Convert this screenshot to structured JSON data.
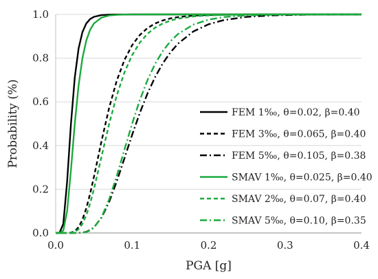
{
  "chart_data": {
    "type": "line",
    "title": "",
    "xlabel": "PGA [g]",
    "ylabel": "Probability (%)",
    "xlim": [
      0.0,
      0.4
    ],
    "ylim": [
      0.0,
      1.0
    ],
    "x_ticks": [
      "0.0",
      "0.1",
      "0.2",
      "0.3",
      "0.4"
    ],
    "y_ticks": [
      "0.0",
      "0.2",
      "0.4",
      "0.6",
      "0.8",
      "1.0"
    ],
    "grid": "horizontal",
    "legend_position": "right",
    "distribution": "lognormal",
    "x_samples": [
      0.0,
      0.005,
      0.01,
      0.015,
      0.02,
      0.025,
      0.03,
      0.035,
      0.04,
      0.045,
      0.05,
      0.06,
      0.07,
      0.08,
      0.09,
      0.1,
      0.11,
      0.12,
      0.13,
      0.14,
      0.15,
      0.16,
      0.18,
      0.2,
      0.22,
      0.25,
      0.28,
      0.3,
      0.33,
      0.36,
      0.4
    ],
    "series": [
      {
        "name": "FEM 1‰, θ=0.02, β=0.40",
        "theta": 0.02,
        "beta": 0.4,
        "color": "#000000",
        "dash": "solid"
      },
      {
        "name": "FEM 3‰, θ=0.065, β=0.40",
        "theta": 0.065,
        "beta": 0.4,
        "color": "#000000",
        "dash": "dash"
      },
      {
        "name": "FEM 5‰, θ=0.105, β=0.38",
        "theta": 0.105,
        "beta": 0.38,
        "color": "#000000",
        "dash": "dashdot"
      },
      {
        "name": "SMAV 1‰, θ=0.025, β=0.40",
        "theta": 0.025,
        "beta": 0.4,
        "color": "#1aaa3c",
        "dash": "solid"
      },
      {
        "name": "SMAV 2‰, θ=0.07, β=0.40",
        "theta": 0.07,
        "beta": 0.4,
        "color": "#1aaa3c",
        "dash": "dash"
      },
      {
        "name": "SMAV 5‰, θ=0.10, β=0.35",
        "theta": 0.1,
        "beta": 0.35,
        "color": "#1aaa3c",
        "dash": "dashdot"
      }
    ]
  }
}
